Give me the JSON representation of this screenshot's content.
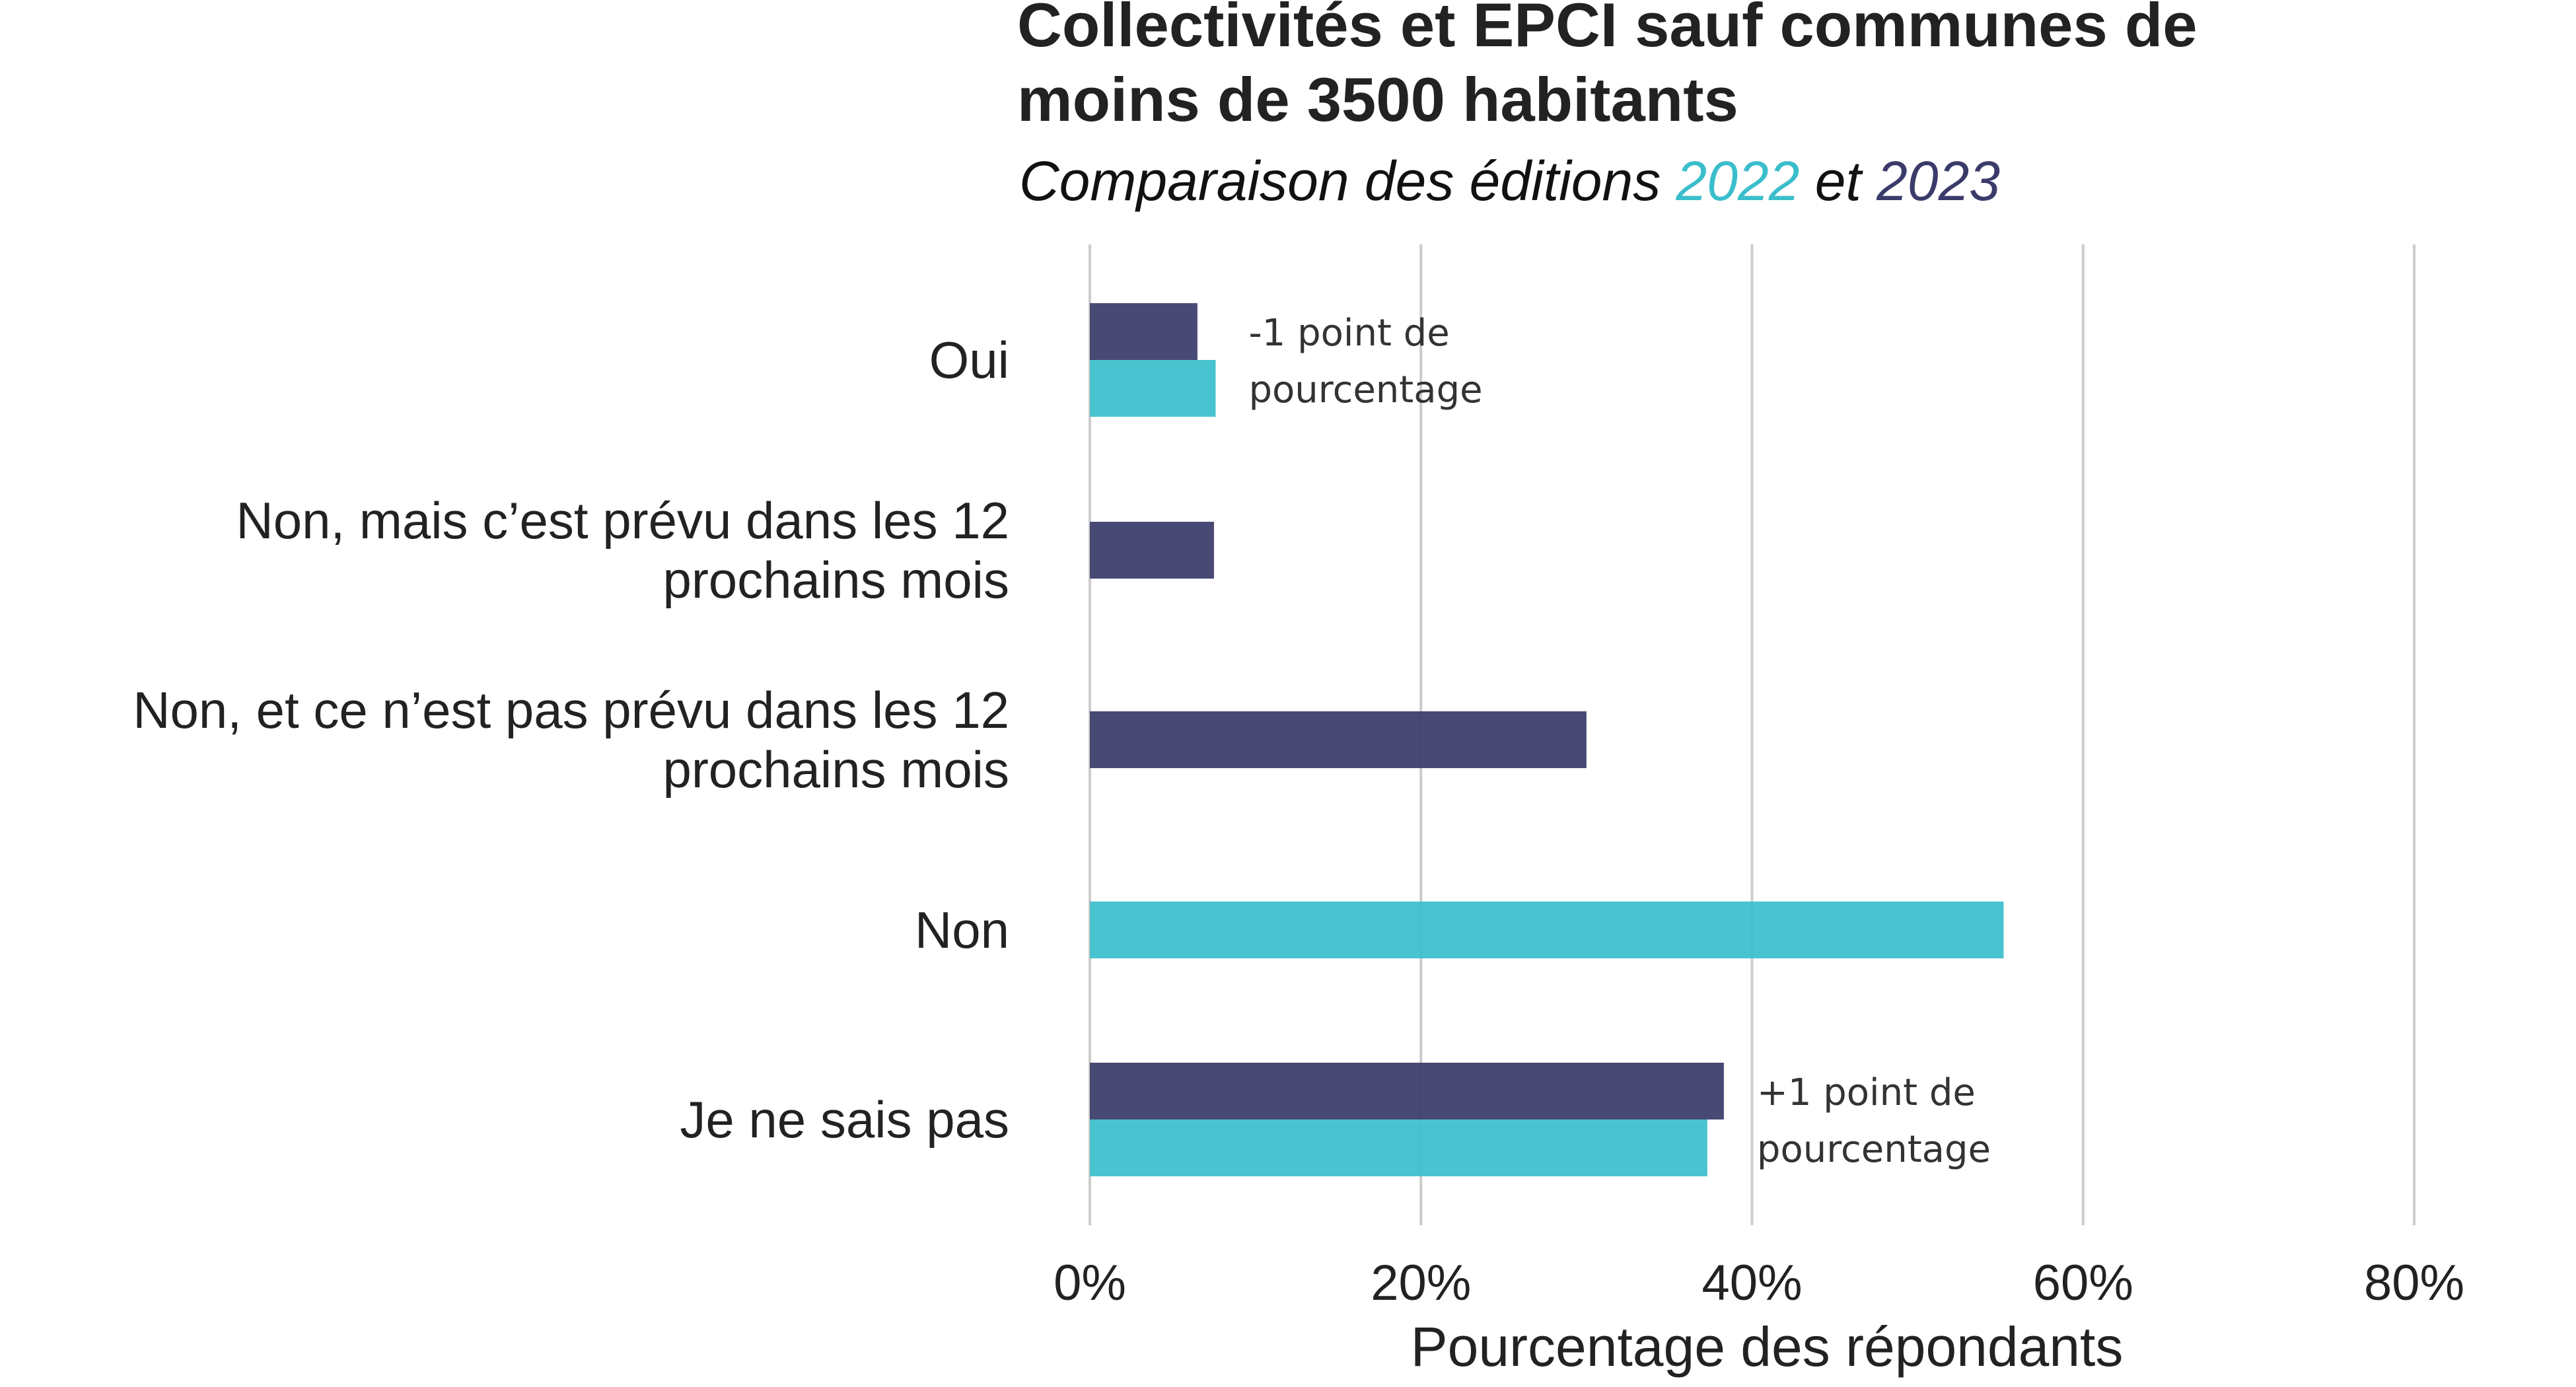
{
  "chart_data": {
    "type": "bar",
    "orientation": "horizontal",
    "title_lines": [
      "Collectivités et EPCI sauf communes de",
      "moins de 3500 habitants"
    ],
    "subtitle": {
      "prefix": "Comparaison des éditions ",
      "year1": "2022",
      "middle": " et ",
      "year2": "2023"
    },
    "categories": [
      [
        "Oui"
      ],
      [
        "Non, mais c’est prévu dans les 12",
        "prochains mois"
      ],
      [
        "Non, et ce n’est pas prévu dans les 12",
        "prochains mois"
      ],
      [
        "Non"
      ],
      [
        "Je ne sais pas"
      ]
    ],
    "series": [
      {
        "name": "2023",
        "color": "#3b3b6b",
        "values": [
          6.5,
          7.5,
          30,
          null,
          38.3
        ]
      },
      {
        "name": "2022",
        "color": "#3bbecb",
        "values": [
          7.6,
          null,
          null,
          55.2,
          37.3
        ]
      }
    ],
    "xlim": [
      0,
      80
    ],
    "xticks": [
      0,
      20,
      40,
      60,
      80
    ],
    "xtick_labels": [
      "0%",
      "20%",
      "40%",
      "60%",
      "80%"
    ],
    "xlabel": "Pourcentage des répondants",
    "annotations": [
      {
        "category_index": 0,
        "lines": [
          "-1 point de",
          "pourcentage"
        ]
      },
      {
        "category_index": 4,
        "lines": [
          "+1 point de",
          "pourcentage"
        ]
      }
    ],
    "grid": true
  }
}
